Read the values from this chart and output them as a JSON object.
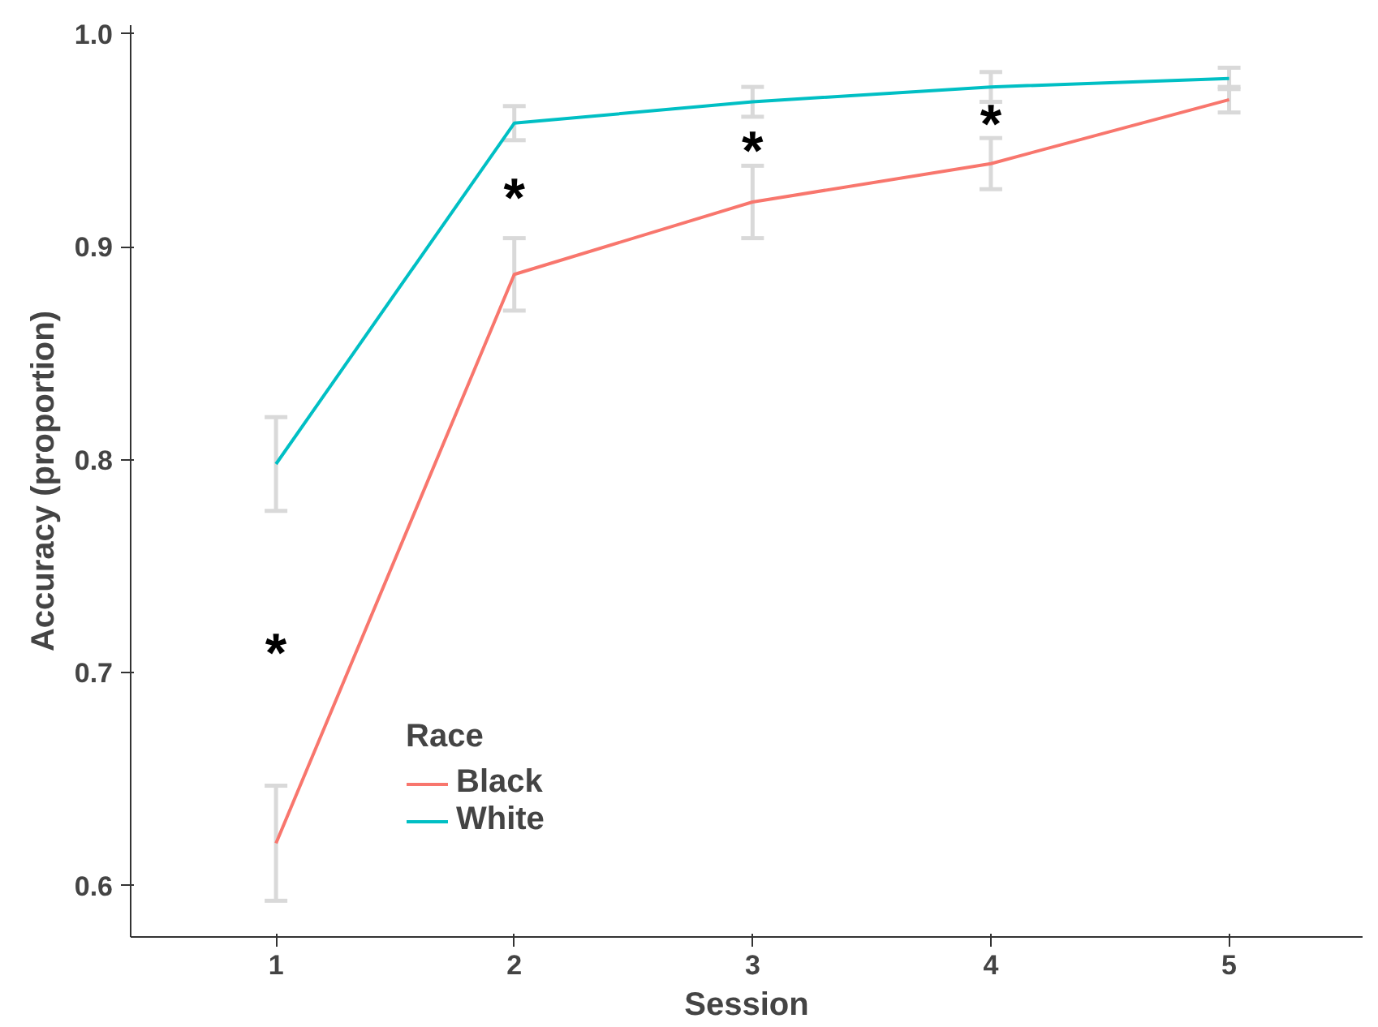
{
  "chart_data": {
    "type": "line",
    "xlabel": "Session",
    "ylabel": "Accuracy (proportion)",
    "legend_title": "Race",
    "x": [
      1,
      2,
      3,
      4,
      5
    ],
    "series": [
      {
        "name": "Black",
        "color": "#f8766d",
        "values": [
          0.62,
          0.887,
          0.921,
          0.939,
          0.969
        ],
        "errors": [
          0.027,
          0.017,
          0.017,
          0.012,
          0.006
        ]
      },
      {
        "name": "White",
        "color": "#00bfc4",
        "values": [
          0.798,
          0.958,
          0.968,
          0.975,
          0.979
        ],
        "errors": [
          0.022,
          0.008,
          0.007,
          0.007,
          0.005
        ]
      }
    ],
    "xlim": [
      0.39,
      5.56
    ],
    "xticks": [
      1,
      2,
      3,
      4,
      5
    ],
    "ylim": [
      0.576,
      1.004
    ],
    "yticks": [
      {
        "value": 0.6,
        "label": "0.6"
      },
      {
        "value": 0.7,
        "label": "0.7"
      },
      {
        "value": 0.8,
        "label": "0.8"
      },
      {
        "value": 0.9,
        "label": "0.9"
      },
      {
        "value": 1.0,
        "label": "1.0"
      }
    ],
    "annotations": [
      "*",
      "*",
      "*",
      "*"
    ],
    "grid": false,
    "legend": "bottom left"
  }
}
